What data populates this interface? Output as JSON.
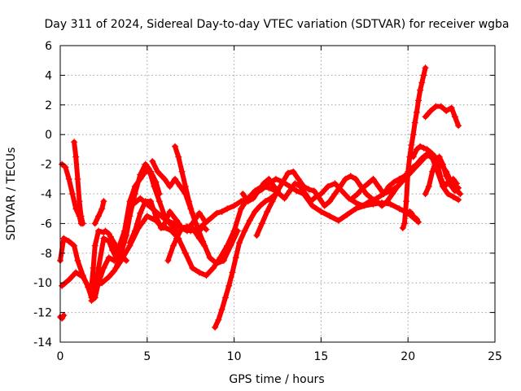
{
  "chart_data": {
    "type": "line",
    "title": "Day 311 of 2024, Sidereal Day-to-day VTEC variation (SDTVAR) for receiver wgba",
    "xlabel": "GPS time / hours",
    "ylabel": "SDTVAR / TECUs",
    "xlim": [
      0,
      25
    ],
    "ylim": [
      -14,
      6
    ],
    "xticks": [
      0,
      5,
      10,
      15,
      20,
      25
    ],
    "xtick_labels": [
      "0",
      "5",
      "10",
      "15",
      "20",
      "25"
    ],
    "yticks": [
      -14,
      -12,
      -10,
      -8,
      -6,
      -4,
      -2,
      0,
      2,
      4,
      6
    ],
    "ytick_labels": [
      "-14",
      "-12",
      "-10",
      "-8",
      "-6",
      "-4",
      "-2",
      "0",
      "2",
      "4",
      "6"
    ],
    "grid": true,
    "legend": "none",
    "color": "#ff0000",
    "marker": "plus",
    "series": [
      {
        "name": "s1",
        "x": [
          0.0,
          0.2,
          0.5,
          0.8,
          1.0,
          1.3,
          1.6,
          1.8,
          2.0,
          2.2,
          2.5,
          2.8,
          3.0,
          3.3,
          3.6,
          3.8
        ],
        "y": [
          -8.5,
          -7.0,
          -7.2,
          -7.5,
          -8.5,
          -9.5,
          -10.3,
          -11.0,
          -10.5,
          -9.0,
          -7.0,
          -7.2,
          -7.8,
          -8.5,
          -8.3,
          -8.5
        ]
      },
      {
        "name": "s2",
        "x": [
          0.0,
          0.1,
          0.2
        ],
        "y": [
          -12.3,
          -12.4,
          -12.2
        ]
      },
      {
        "name": "s3",
        "x": [
          0.1,
          0.5,
          0.9,
          1.3,
          1.7,
          2.0,
          2.4,
          2.8,
          3.1,
          3.5,
          4.0,
          4.5,
          5.0,
          5.5,
          5.8,
          6.0,
          6.3,
          6.7,
          7.0,
          7.3,
          7.6,
          8.0,
          8.3
        ],
        "y": [
          -10.2,
          -9.8,
          -9.3,
          -9.6,
          -10.4,
          -10.2,
          -10.0,
          -9.6,
          -9.2,
          -8.5,
          -7.5,
          -6.3,
          -5.5,
          -5.8,
          -6.2,
          -6.0,
          -5.2,
          -5.8,
          -6.3,
          -6.5,
          -6.0,
          -5.3,
          -5.8
        ]
      },
      {
        "name": "s4",
        "x": [
          0.1,
          0.3,
          0.5,
          0.7,
          0.9,
          1.1,
          1.2
        ],
        "y": [
          -2.0,
          -2.2,
          -3.0,
          -4.0,
          -5.0,
          -5.5,
          -6.0
        ]
      },
      {
        "name": "s5",
        "x": [
          0.8,
          0.9,
          1.0,
          1.1,
          1.2,
          1.3
        ],
        "y": [
          -0.5,
          -1.5,
          -3.0,
          -4.5,
          -5.5,
          -6.0
        ]
      },
      {
        "name": "s6",
        "x": [
          1.8,
          2.0,
          2.2,
          2.5,
          2.8,
          3.1,
          3.4,
          3.7,
          4.0,
          4.3,
          4.6,
          4.9,
          5.2,
          5.5,
          5.7
        ],
        "y": [
          -11.2,
          -11.0,
          -10.0,
          -9.0,
          -8.3,
          -8.5,
          -7.5,
          -6.5,
          -4.5,
          -3.5,
          -3.0,
          -2.5,
          -2.5,
          -3.2,
          -4.0
        ]
      },
      {
        "name": "s7",
        "x": [
          1.8,
          1.9,
          2.0,
          2.2,
          2.5,
          2.6,
          2.8,
          2.9,
          3.1,
          3.3
        ],
        "y": [
          -10.3,
          -9.0,
          -7.5,
          -6.5,
          -6.6,
          -6.5,
          -6.7,
          -6.9,
          -7.3,
          -7.8
        ]
      },
      {
        "name": "s8",
        "x": [
          2.0,
          2.2,
          2.4,
          2.5
        ],
        "y": [
          -6.0,
          -5.5,
          -5.0,
          -4.5
        ]
      },
      {
        "name": "s9",
        "x": [
          3.2,
          3.5,
          3.8,
          4.0,
          4.3,
          4.6,
          4.9,
          5.1,
          5.4,
          5.7,
          6.0,
          6.3,
          6.7
        ],
        "y": [
          -9.0,
          -8.0,
          -6.8,
          -5.5,
          -4.0,
          -2.7,
          -2.0,
          -2.3,
          -3.5,
          -4.5,
          -5.5,
          -6.0,
          -6.5
        ]
      },
      {
        "name": "s10",
        "x": [
          4.0,
          4.3,
          4.6,
          4.9,
          5.2,
          5.5,
          5.8,
          6.1,
          6.4,
          6.8,
          7.2,
          7.6,
          8.0,
          8.4,
          8.8,
          9.2,
          9.6,
          10.0,
          10.4,
          10.8,
          11.2,
          11.6,
          12.0,
          12.4
        ],
        "y": [
          -7.3,
          -6.5,
          -5.3,
          -4.5,
          -4.5,
          -5.5,
          -6.3,
          -6.3,
          -6.5,
          -7.0,
          -8.0,
          -9.0,
          -9.3,
          -9.5,
          -9.0,
          -8.3,
          -7.5,
          -6.5,
          -5.0,
          -4.3,
          -3.8,
          -3.5,
          -3.6,
          -3.8
        ]
      },
      {
        "name": "s11",
        "x": [
          4.2,
          4.6,
          5.0,
          5.5,
          6.0,
          6.5,
          7.0,
          7.5,
          8.0,
          8.5,
          9.0,
          9.3,
          9.6,
          10.0,
          10.4,
          10.8,
          11.2,
          11.6,
          12.0,
          12.4,
          12.8,
          13.2,
          13.6,
          14.0,
          14.5,
          15.0,
          15.5,
          16.0,
          16.5,
          17.0,
          17.5,
          18.0,
          18.5,
          19.0,
          19.5,
          20.0,
          20.5
        ],
        "y": [
          -4.7,
          -4.3,
          -4.7,
          -5.2,
          -5.7,
          -6.0,
          -6.3,
          -6.5,
          -6.3,
          -5.8,
          -5.3,
          -5.2,
          -5.0,
          -4.8,
          -4.5,
          -4.3,
          -4.0,
          -3.7,
          -3.3,
          -3.0,
          -3.2,
          -3.5,
          -3.8,
          -4.0,
          -4.8,
          -5.2,
          -5.5,
          -5.8,
          -5.4,
          -5.0,
          -4.8,
          -4.7,
          -4.6,
          -4.7,
          -5.0,
          -5.3,
          -5.8
        ]
      },
      {
        "name": "s12",
        "x": [
          5.3,
          5.6,
          6.0,
          6.3,
          6.6,
          6.9,
          7.2,
          7.5,
          7.8,
          8.2,
          8.6,
          9.0,
          9.4,
          9.8,
          10.2
        ],
        "y": [
          -1.8,
          -2.5,
          -3.0,
          -3.5,
          -3.0,
          -3.5,
          -4.0,
          -5.0,
          -6.0,
          -7.2,
          -8.3,
          -8.7,
          -8.5,
          -7.5,
          -6.5
        ]
      },
      {
        "name": "s13",
        "x": [
          6.2,
          6.5,
          6.7,
          6.9,
          7.1,
          7.3,
          7.6,
          8.0,
          8.3
        ],
        "y": [
          -8.5,
          -7.5,
          -7.0,
          -6.5,
          -6.3,
          -6.2,
          -6.3,
          -7.0,
          -7.5
        ]
      },
      {
        "name": "s14",
        "x": [
          6.6,
          6.8,
          7.0,
          7.2,
          7.4,
          7.6,
          7.8,
          8.0,
          8.2,
          8.4
        ],
        "y": [
          -0.8,
          -1.5,
          -2.5,
          -3.5,
          -4.5,
          -5.3,
          -6.0,
          -6.5,
          -6.2,
          -6.4
        ]
      },
      {
        "name": "s15",
        "x": [
          8.9,
          9.1,
          9.3,
          9.5,
          9.7,
          9.9,
          10.1,
          10.3,
          10.6,
          10.9,
          11.2,
          11.5,
          11.8,
          12.1,
          12.4
        ],
        "y": [
          -13.0,
          -12.5,
          -11.8,
          -11.0,
          -10.2,
          -9.3,
          -8.3,
          -7.3,
          -6.5,
          -5.8,
          -5.2,
          -4.8,
          -4.5,
          -4.3,
          -4.0
        ]
      },
      {
        "name": "s16",
        "x": [
          10.5,
          10.8,
          11.1,
          11.4,
          11.7,
          12.0,
          12.3,
          12.6,
          12.9,
          13.2,
          13.5,
          13.8,
          14.1,
          14.4,
          14.7,
          15.0,
          15.4,
          15.8,
          16.2,
          16.6,
          17.0,
          17.4,
          17.8,
          18.2,
          18.6,
          19.0,
          19.4,
          19.8,
          20.2,
          20.6,
          21.0,
          21.4,
          21.8,
          22.2,
          22.6,
          23.0
        ],
        "y": [
          -4.0,
          -4.5,
          -4.3,
          -3.8,
          -3.3,
          -3.0,
          -3.5,
          -4.0,
          -4.3,
          -3.8,
          -3.3,
          -3.5,
          -4.0,
          -4.5,
          -4.2,
          -4.0,
          -3.5,
          -3.3,
          -3.8,
          -4.3,
          -4.6,
          -4.8,
          -4.5,
          -4.3,
          -4.0,
          -3.8,
          -3.5,
          -3.0,
          -2.5,
          -2.0,
          -1.5,
          -1.3,
          -1.8,
          -2.5,
          -3.5,
          -4.0
        ]
      },
      {
        "name": "s17",
        "x": [
          11.3,
          11.6,
          11.9,
          12.2,
          12.5,
          12.8,
          13.1,
          13.4,
          13.7,
          14.0,
          14.3,
          14.6,
          14.9,
          15.2,
          15.5,
          15.8,
          16.1,
          16.4,
          16.7,
          17.0,
          17.3,
          17.6,
          17.9,
          18.2,
          18.5,
          18.8,
          19.1,
          19.4,
          19.7,
          20.0
        ],
        "y": [
          -6.8,
          -6.0,
          -5.2,
          -4.5,
          -3.8,
          -3.2,
          -2.6,
          -2.5,
          -3.0,
          -3.5,
          -3.7,
          -3.8,
          -4.3,
          -4.8,
          -4.5,
          -4.0,
          -3.5,
          -3.0,
          -2.8,
          -3.0,
          -3.5,
          -4.0,
          -4.3,
          -4.5,
          -4.8,
          -4.5,
          -4.0,
          -3.5,
          -3.0,
          -2.6
        ]
      },
      {
        "name": "s18",
        "x": [
          16.8,
          17.1,
          17.4,
          17.7,
          18.0,
          18.3,
          18.6,
          18.9,
          19.2,
          19.5,
          19.8,
          20.0,
          20.2,
          20.5,
          20.8,
          21.1,
          21.4,
          21.7,
          22.0,
          22.3,
          22.6,
          22.9
        ],
        "y": [
          -4.3,
          -4.0,
          -3.6,
          -3.3,
          -3.0,
          -3.5,
          -4.0,
          -3.5,
          -3.2,
          -3.0,
          -2.8,
          -2.6,
          -2.3,
          -2.0,
          -1.6,
          -1.3,
          -1.6,
          -2.5,
          -3.5,
          -4.0,
          -4.2,
          -4.4
        ]
      },
      {
        "name": "s19",
        "x": [
          19.7,
          19.8,
          19.9,
          20.0,
          20.1,
          20.2,
          20.3,
          20.4,
          20.5,
          20.6,
          20.7,
          20.8,
          20.9,
          21.0
        ],
        "y": [
          -6.3,
          -6.0,
          -4.5,
          -2.5,
          -1.5,
          -0.7,
          0.0,
          0.8,
          1.5,
          2.3,
          3.0,
          3.5,
          4.0,
          4.5
        ]
      },
      {
        "name": "s20",
        "x": [
          20.1,
          20.2,
          20.3,
          20.4,
          20.5,
          20.6
        ],
        "y": [
          -5.2,
          -5.3,
          -5.5,
          -5.6,
          -5.7,
          -5.9
        ]
      },
      {
        "name": "s21",
        "x": [
          20.3,
          20.5,
          20.7,
          20.9,
          21.1,
          21.3,
          21.5,
          21.7,
          21.9,
          22.1,
          22.3,
          22.5,
          22.7,
          22.9
        ],
        "y": [
          -1.5,
          -1.0,
          -0.8,
          -0.9,
          -1.0,
          -1.2,
          -1.5,
          -2.0,
          -3.0,
          -3.5,
          -3.2,
          -3.5,
          -3.8,
          -3.6
        ]
      },
      {
        "name": "s22",
        "x": [
          21.0,
          21.3,
          21.6,
          21.9,
          22.2,
          22.5,
          22.7,
          22.9
        ],
        "y": [
          1.2,
          1.6,
          1.9,
          1.9,
          1.6,
          1.8,
          1.2,
          0.6
        ]
      },
      {
        "name": "s23",
        "x": [
          21.0,
          21.2,
          21.4,
          21.6,
          21.8,
          22.0,
          22.2,
          22.4,
          22.6,
          22.8
        ],
        "y": [
          -4.0,
          -3.5,
          -2.5,
          -1.8,
          -1.5,
          -2.0,
          -2.8,
          -3.2,
          -3.0,
          -3.3
        ]
      }
    ]
  }
}
